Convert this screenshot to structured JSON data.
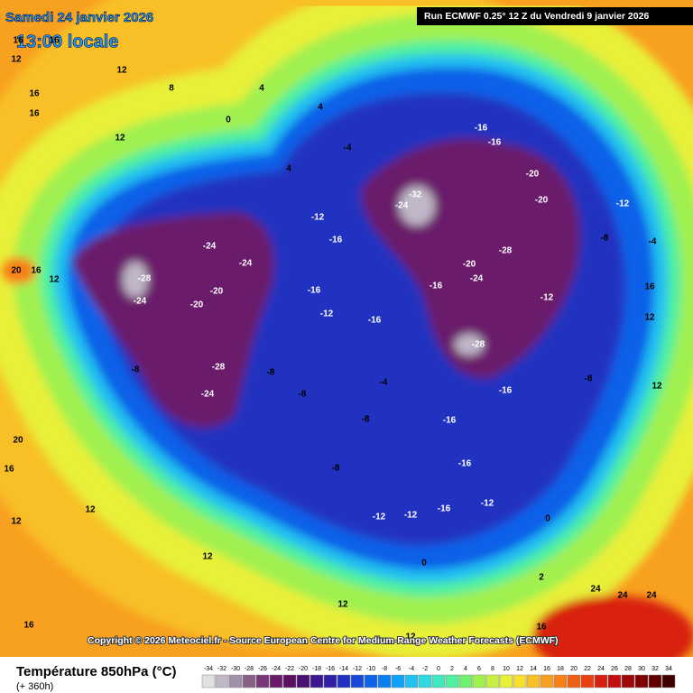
{
  "header": {
    "date": "Samedi 24 janvier 2026",
    "time": "13:00 locale",
    "run": "Run ECMWF 0.25° 12 Z du Vendredi 9 janvier 2026"
  },
  "copyright": "Copyright © 2026 Meteociel.fr - Source European Centre for Medium-Range Weather Forecasts (ECMWF)",
  "legend": {
    "title": "Température 850hPa (°C)",
    "subtitle": "(+ 360h)",
    "ticks": [
      -34,
      -32,
      -30,
      -28,
      -26,
      -24,
      -22,
      -20,
      -18,
      -16,
      -14,
      -12,
      -10,
      -8,
      -6,
      -4,
      -2,
      0,
      2,
      4,
      6,
      8,
      10,
      12,
      14,
      16,
      18,
      20,
      22,
      24,
      26,
      28,
      30,
      32,
      34
    ]
  },
  "map_labels": [
    "16",
    "16",
    "12",
    "12",
    "16",
    "16",
    "12",
    "8",
    "0",
    "4",
    "4",
    "4",
    "-4",
    "-16",
    "-16",
    "-32",
    "-24",
    "-20",
    "-12",
    "-8",
    "-4",
    "16",
    "12",
    "12",
    "-28",
    "-24",
    "-24",
    "-24",
    "-20",
    "-20",
    "-28",
    "-24",
    "-12",
    "-16",
    "-16",
    "-12",
    "-16",
    "-28",
    "-24",
    "-20",
    "-28",
    "-16",
    "-4",
    "-8",
    "-8",
    "-16",
    "-16",
    "-12",
    "-16",
    "-12",
    "-12",
    "0",
    "0",
    "2",
    "24",
    "24",
    "24",
    "12",
    "16",
    "16",
    "12",
    "12",
    "20",
    "16",
    "20",
    "16",
    "12",
    "-8",
    "-8",
    "-8",
    "-20",
    "-12",
    "-16",
    "-8",
    "12",
    "12"
  ]
}
